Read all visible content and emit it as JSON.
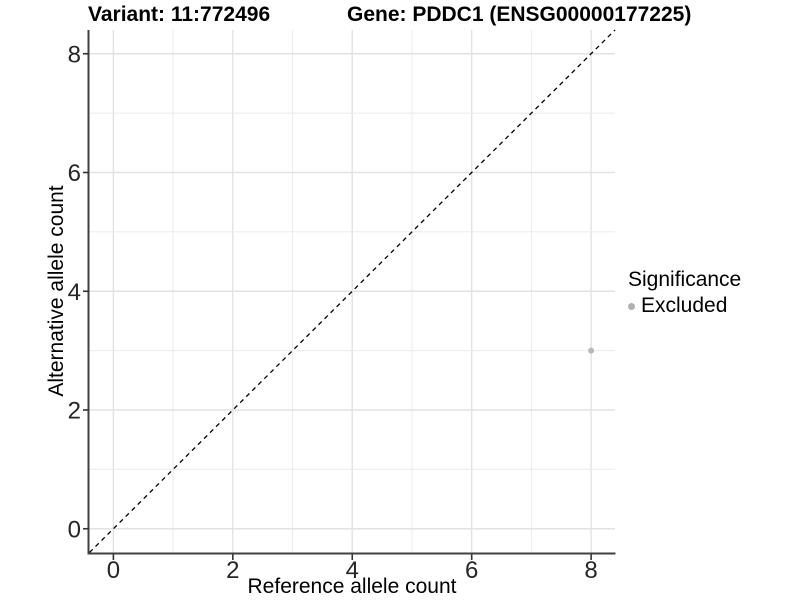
{
  "chart_data": {
    "type": "scatter",
    "titles": {
      "left": "Variant: 11:772496",
      "right": "Gene: PDDC1 (ENSG00000177225)"
    },
    "xlabel": "Reference allele count",
    "ylabel": "Alternative allele count",
    "xlim": [
      -0.4,
      8.4
    ],
    "ylim": [
      -0.4,
      8.4
    ],
    "x_ticks": [
      0,
      2,
      4,
      6,
      8
    ],
    "y_ticks": [
      0,
      2,
      4,
      6,
      8
    ],
    "grid": {
      "show": true,
      "interval": 1
    },
    "series": [
      {
        "name": "Excluded",
        "color": "#b9b9b9",
        "point_radius": 3,
        "points": [
          {
            "x": 8,
            "y": 3
          }
        ]
      }
    ],
    "reference_line": {
      "kind": "identity",
      "equation": "y = x",
      "style": "dashed",
      "color": "#000000"
    },
    "legend": {
      "title": "Significance",
      "position": "right",
      "entries": [
        {
          "label": "Excluded",
          "color": "#b0b0b0"
        }
      ]
    },
    "colors": {
      "background": "#ffffff",
      "grid_major": "#e2e2e2",
      "grid_minor": "#ebebeb",
      "axis_line": "#404040",
      "tick_mark": "#333333",
      "tick_text": "#262626",
      "title_text": "#000000"
    }
  }
}
